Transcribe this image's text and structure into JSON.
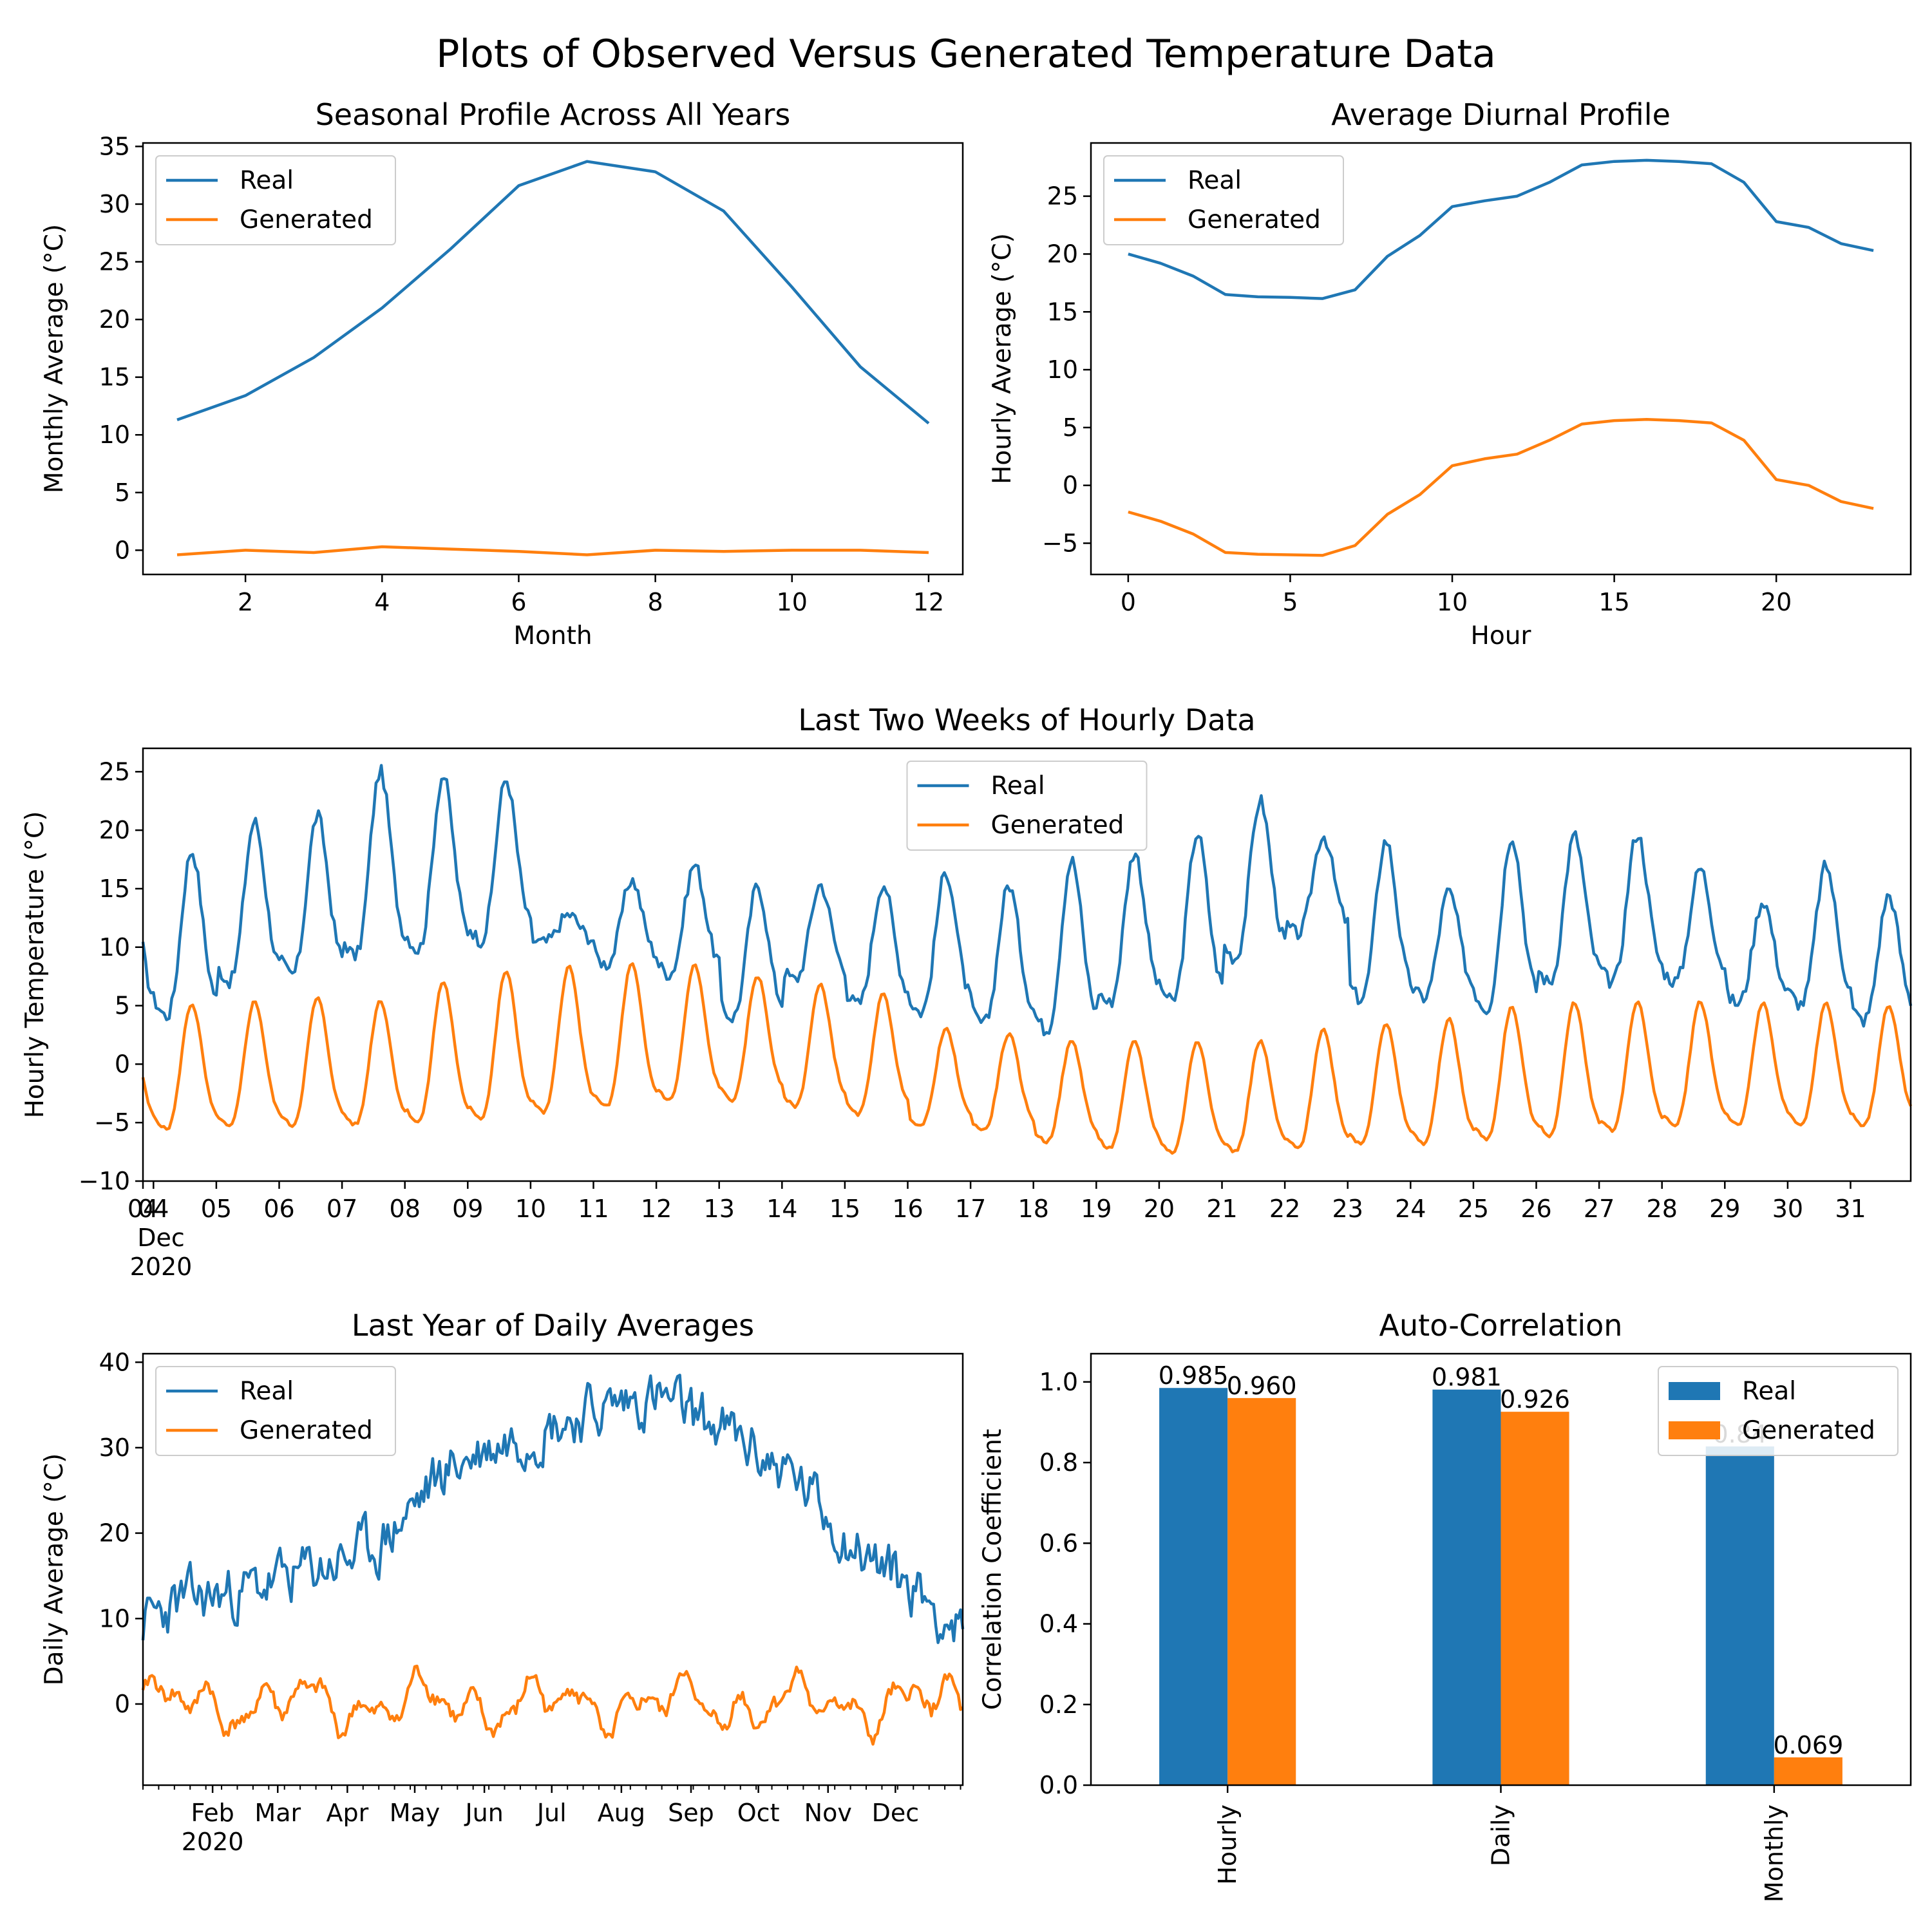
{
  "figure": {
    "suptitle": "Plots of Observed Versus Generated Temperature Data",
    "colors": {
      "real": "#1f77b4",
      "generated": "#ff7f0e"
    }
  },
  "chart_data": [
    {
      "id": "seasonal",
      "type": "line",
      "title": "Seasonal Profile Across All Years",
      "xlabel": "Month",
      "ylabel": "Monthly Average (°C)",
      "xlim": [
        0.5,
        12.5
      ],
      "ylim": [
        -2.1,
        35.3
      ],
      "xticks": [
        2,
        4,
        6,
        8,
        10,
        12
      ],
      "yticks": [
        0,
        5,
        10,
        15,
        20,
        25,
        30,
        35
      ],
      "legend": "top-left",
      "x": [
        1,
        2,
        3,
        4,
        5,
        6,
        7,
        8,
        9,
        10,
        11,
        12
      ],
      "series": [
        {
          "name": "Real",
          "color": "#1f77b4",
          "values": [
            11.3,
            13.4,
            16.7,
            21.0,
            26.1,
            31.6,
            33.7,
            32.8,
            29.4,
            22.8,
            15.9,
            11.0
          ]
        },
        {
          "name": "Generated",
          "color": "#ff7f0e",
          "values": [
            -0.4,
            0.0,
            -0.2,
            0.3,
            0.1,
            -0.1,
            -0.4,
            0.0,
            -0.1,
            0.0,
            0.0,
            -0.2
          ]
        }
      ]
    },
    {
      "id": "diurnal",
      "type": "line",
      "title": "Average Diurnal Profile",
      "xlabel": "Hour",
      "ylabel": "Hourly Average (°C)",
      "xlim": [
        -1.15,
        24.15
      ],
      "ylim": [
        -7.7,
        29.6
      ],
      "xticks": [
        0,
        5,
        10,
        15,
        20
      ],
      "yticks": [
        -5,
        0,
        5,
        10,
        15,
        20,
        25
      ],
      "legend": "top-left",
      "x": [
        0,
        1,
        2,
        3,
        4,
        5,
        6,
        7,
        8,
        9,
        10,
        11,
        12,
        13,
        14,
        15,
        16,
        17,
        18,
        19,
        20,
        21,
        22,
        23
      ],
      "series": [
        {
          "name": "Real",
          "color": "#1f77b4",
          "values": [
            20.0,
            19.2,
            18.1,
            16.5,
            16.3,
            16.25,
            16.15,
            16.9,
            19.8,
            21.6,
            24.1,
            24.6,
            25.0,
            26.2,
            27.7,
            28.0,
            28.1,
            28.0,
            27.8,
            26.2,
            22.8,
            22.3,
            20.9,
            20.3
          ]
        },
        {
          "name": "Generated",
          "color": "#ff7f0e",
          "values": [
            -2.3,
            -3.1,
            -4.2,
            -5.8,
            -5.95,
            -6.0,
            -6.05,
            -5.2,
            -2.5,
            -0.8,
            1.7,
            2.3,
            2.7,
            3.9,
            5.3,
            5.6,
            5.7,
            5.6,
            5.4,
            3.9,
            0.5,
            0.0,
            -1.4,
            -2.0
          ]
        }
      ]
    },
    {
      "id": "hourly",
      "type": "line",
      "title": "Last Two Weeks of Hourly Data",
      "xlabel": "",
      "ylabel": "Hourly Temperature (°C)",
      "x_unit": "day of December 2020",
      "xlim": [
        3.833,
        31.958
      ],
      "ylim": [
        -10,
        27
      ],
      "xtick_days": [
        4,
        5,
        6,
        7,
        8,
        9,
        10,
        11,
        12,
        13,
        14,
        15,
        16,
        17,
        18,
        19,
        20,
        21,
        22,
        23,
        24,
        25,
        26,
        27,
        28,
        29,
        30,
        31
      ],
      "xtick_labels": [
        "04",
        "05",
        "06",
        "07",
        "08",
        "09",
        "10",
        "11",
        "12",
        "13",
        "14",
        "15",
        "16",
        "17",
        "18",
        "19",
        "20",
        "21",
        "22",
        "23",
        "24",
        "25",
        "26",
        "27",
        "28",
        "29",
        "30",
        "31"
      ],
      "xlabel_extra": [
        "Dec",
        "2020"
      ],
      "yticks": [
        -10,
        -5,
        0,
        5,
        10,
        15,
        20,
        25
      ],
      "legend": "top-center",
      "start_day": 3.833,
      "samples_per_day": 24,
      "real_daily": [
        {
          "min": 3.0,
          "max": 18.3
        },
        {
          "min": 6.0,
          "max": 20.8
        },
        {
          "min": 6.6,
          "max": 21.3
        },
        {
          "min": 8.0,
          "max": 25.1
        },
        {
          "min": 8.6,
          "max": 24.7
        },
        {
          "min": 9.5,
          "max": 24.4
        },
        {
          "min": 10.2,
          "max": 12.8
        },
        {
          "min": 8.0,
          "max": 15.8
        },
        {
          "min": 7.0,
          "max": 17.1
        },
        {
          "min": 3.1,
          "max": 15.3
        },
        {
          "min": 6.6,
          "max": 15.4
        },
        {
          "min": 4.3,
          "max": 15.5
        },
        {
          "min": 3.5,
          "max": 16.5
        },
        {
          "min": 2.5,
          "max": 15.4
        },
        {
          "min": 1.8,
          "max": 17.5
        },
        {
          "min": 4.2,
          "max": 18.2
        },
        {
          "min": 4.2,
          "max": 19.8
        },
        {
          "min": 8.0,
          "max": 22.6
        },
        {
          "min": 10.5,
          "max": 19.6
        },
        {
          "min": 4.5,
          "max": 19.2
        },
        {
          "min": 5.0,
          "max": 14.8
        },
        {
          "min": 3.6,
          "max": 19.6
        },
        {
          "min": 6.0,
          "max": 19.6
        },
        {
          "min": 6.0,
          "max": 19.8
        },
        {
          "min": 6.3,
          "max": 16.8
        },
        {
          "min": 4.5,
          "max": 14.0
        },
        {
          "min": 4.2,
          "max": 17.0
        },
        {
          "min": 2.9,
          "max": 14.5
        }
      ],
      "generated_daily": [
        {
          "min": -6.4,
          "max": 5.2
        },
        {
          "min": -6.2,
          "max": 5.4
        },
        {
          "min": -6.1,
          "max": 5.7
        },
        {
          "min": -6.0,
          "max": 5.5
        },
        {
          "min": -5.9,
          "max": 7.1
        },
        {
          "min": -5.6,
          "max": 8.0
        },
        {
          "min": -5.1,
          "max": 8.4
        },
        {
          "min": -4.6,
          "max": 8.6
        },
        {
          "min": -4.0,
          "max": 8.5
        },
        {
          "min": -3.9,
          "max": 7.6
        },
        {
          "min": -4.4,
          "max": 6.8
        },
        {
          "min": -5.1,
          "max": 6.0
        },
        {
          "min": -5.9,
          "max": 3.0
        },
        {
          "min": -6.3,
          "max": 2.6
        },
        {
          "min": -7.3,
          "max": 2.0
        },
        {
          "min": -7.9,
          "max": 2.0
        },
        {
          "min": -8.3,
          "max": 2.0
        },
        {
          "min": -8.2,
          "max": 2.0
        },
        {
          "min": -8.0,
          "max": 3.0
        },
        {
          "min": -7.6,
          "max": 3.5
        },
        {
          "min": -7.6,
          "max": 3.9
        },
        {
          "min": -7.3,
          "max": 4.9
        },
        {
          "min": -7.0,
          "max": 5.3
        },
        {
          "min": -6.5,
          "max": 5.4
        },
        {
          "min": -6.1,
          "max": 5.4
        },
        {
          "min": -6.0,
          "max": 5.3
        },
        {
          "min": -6.1,
          "max": 5.2
        },
        {
          "min": -6.0,
          "max": 5.0
        }
      ],
      "series": [
        {
          "name": "Real",
          "color": "#1f77b4"
        },
        {
          "name": "Generated",
          "color": "#ff7f0e"
        }
      ]
    },
    {
      "id": "daily",
      "type": "line",
      "title": "Last Year of Daily Averages",
      "xlabel": "",
      "ylabel": "Daily Average (°C)",
      "x_unit": "day of year 2020",
      "xlim": [
        1,
        366
      ],
      "ylim": [
        -9.5,
        41
      ],
      "yticks": [
        0,
        10,
        20,
        30,
        40
      ],
      "month_ticks": [
        {
          "day": 32,
          "label": "Feb"
        },
        {
          "day": 61,
          "label": "Mar"
        },
        {
          "day": 92,
          "label": "Apr"
        },
        {
          "day": 122,
          "label": "May"
        },
        {
          "day": 153,
          "label": "Jun"
        },
        {
          "day": 183,
          "label": "Jul"
        },
        {
          "day": 214,
          "label": "Aug"
        },
        {
          "day": 245,
          "label": "Sep"
        },
        {
          "day": 275,
          "label": "Oct"
        },
        {
          "day": 306,
          "label": "Nov"
        },
        {
          "day": 336,
          "label": "Dec"
        }
      ],
      "year_label": "2020",
      "legend": "top-left",
      "real_monthly_knots": [
        {
          "day": 1,
          "value": 9.5
        },
        {
          "day": 16,
          "value": 11.8
        },
        {
          "day": 46,
          "value": 13.2
        },
        {
          "day": 75,
          "value": 15.5
        },
        {
          "day": 106,
          "value": 18.5
        },
        {
          "day": 136,
          "value": 27.5
        },
        {
          "day": 167,
          "value": 31.5
        },
        {
          "day": 197,
          "value": 34.0
        },
        {
          "day": 228,
          "value": 36.0
        },
        {
          "day": 259,
          "value": 32.0
        },
        {
          "day": 289,
          "value": 27.0
        },
        {
          "day": 320,
          "value": 18.0
        },
        {
          "day": 350,
          "value": 12.5
        },
        {
          "day": 366,
          "value": 8.0
        }
      ],
      "real_range": [
        6.0,
        38.7
      ],
      "generated_range": [
        -7.1,
        5.0
      ],
      "series": [
        {
          "name": "Real",
          "color": "#1f77b4"
        },
        {
          "name": "Generated",
          "color": "#ff7f0e"
        }
      ]
    },
    {
      "id": "autocorr",
      "type": "bar",
      "title": "Auto-Correlation",
      "xlabel": "",
      "ylabel": "Correlation Coefficient",
      "ylim": [
        0,
        1.07
      ],
      "yticks": [
        0.0,
        0.2,
        0.4,
        0.6,
        0.8,
        1.0
      ],
      "ytick_labels": [
        "0.0",
        "0.2",
        "0.4",
        "0.6",
        "0.8",
        "1.0"
      ],
      "categories": [
        "Hourly",
        "Daily",
        "Monthly"
      ],
      "legend": "top-right",
      "series": [
        {
          "name": "Real",
          "color": "#1f77b4",
          "values": [
            0.985,
            0.981,
            0.84
          ],
          "labels": [
            "0.985",
            "0.981",
            "0.84"
          ]
        },
        {
          "name": "Generated",
          "color": "#ff7f0e",
          "values": [
            0.96,
            0.926,
            0.069
          ],
          "labels": [
            "0.960",
            "0.926",
            "0.069"
          ]
        }
      ]
    }
  ]
}
